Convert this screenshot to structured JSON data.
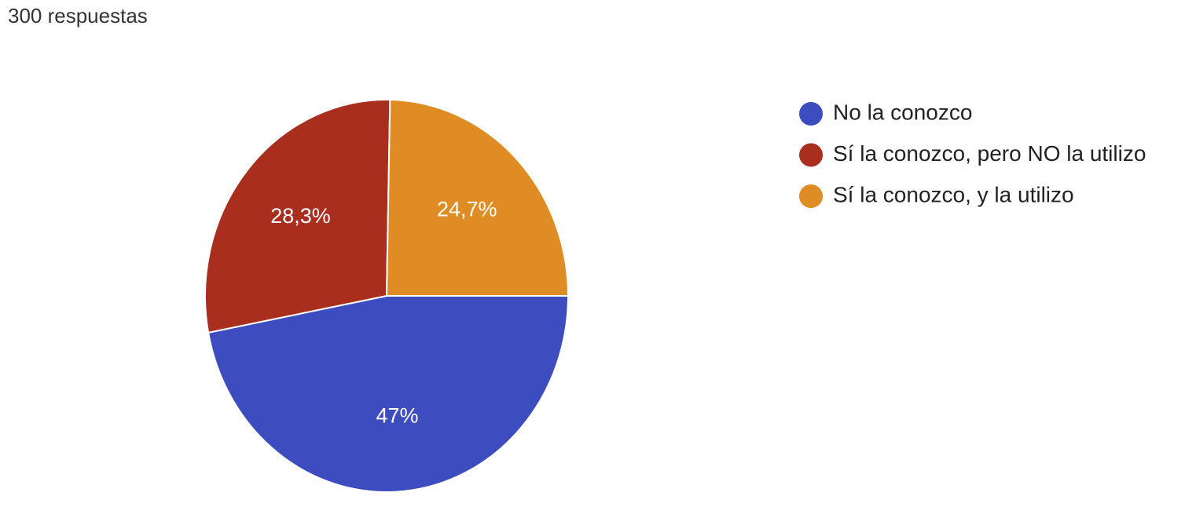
{
  "chart_data": {
    "type": "pie",
    "subtitle": "300 respuestas",
    "categories": [
      "No la conozco",
      "Sí la conozco, pero NO la utilizo",
      "Sí la conozco, y la utilizo"
    ],
    "values": [
      47,
      28.3,
      24.7
    ],
    "value_labels": [
      "47%",
      "28,3%",
      "24,7%"
    ],
    "colors": [
      "#3d4dbf",
      "#aa2e1e",
      "#df8c24"
    ],
    "legend": "right"
  }
}
